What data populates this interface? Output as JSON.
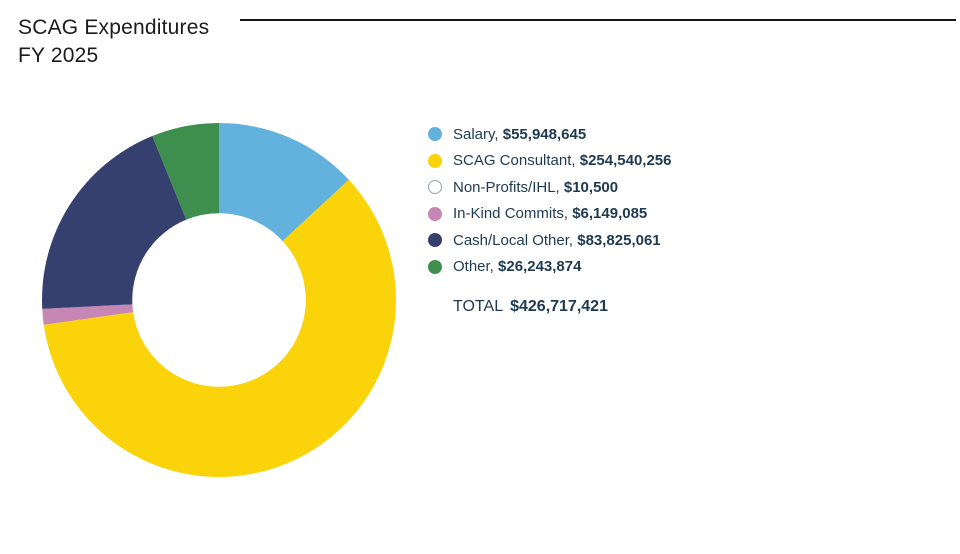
{
  "header": {
    "title_line1": "SCAG Expenditures",
    "title_line2": "FY 2025"
  },
  "chart_data": {
    "type": "pie",
    "subtype": "donut",
    "title": "SCAG Expenditures FY 2025",
    "start_angle_deg": 0,
    "direction": "clockwise",
    "legend_position": "right",
    "inner_radius_ratio": 0.49,
    "segments": [
      {
        "label": "Salary",
        "value": 55948645,
        "display": "$55,948,645",
        "color": "#63B2DE"
      },
      {
        "label": "SCAG Consultant",
        "value": 254540256,
        "display": "$254,540,256",
        "color": "#FBD30B"
      },
      {
        "label": "Non-Profits/IHL",
        "value": 10500,
        "display": "$10,500",
        "color": "#FFFFFF",
        "border": "#97A3AD"
      },
      {
        "label": "In-Kind Commits",
        "value": 6149085,
        "display": "$6,149,085",
        "color": "#C787B5"
      },
      {
        "label": "Cash/Local Other",
        "value": 83825061,
        "display": "$83,825,061",
        "color": "#35406F"
      },
      {
        "label": "Other",
        "value": 26243874,
        "display": "$26,243,874",
        "color": "#3E8E4D"
      }
    ],
    "total": {
      "label": "TOTAL",
      "value": 426717421,
      "display": "$426,717,421"
    },
    "label_separator": ", "
  },
  "style": {
    "text_color": "#1e3a50",
    "title_color": "#1b1b1b",
    "divider_color": "#161616"
  }
}
